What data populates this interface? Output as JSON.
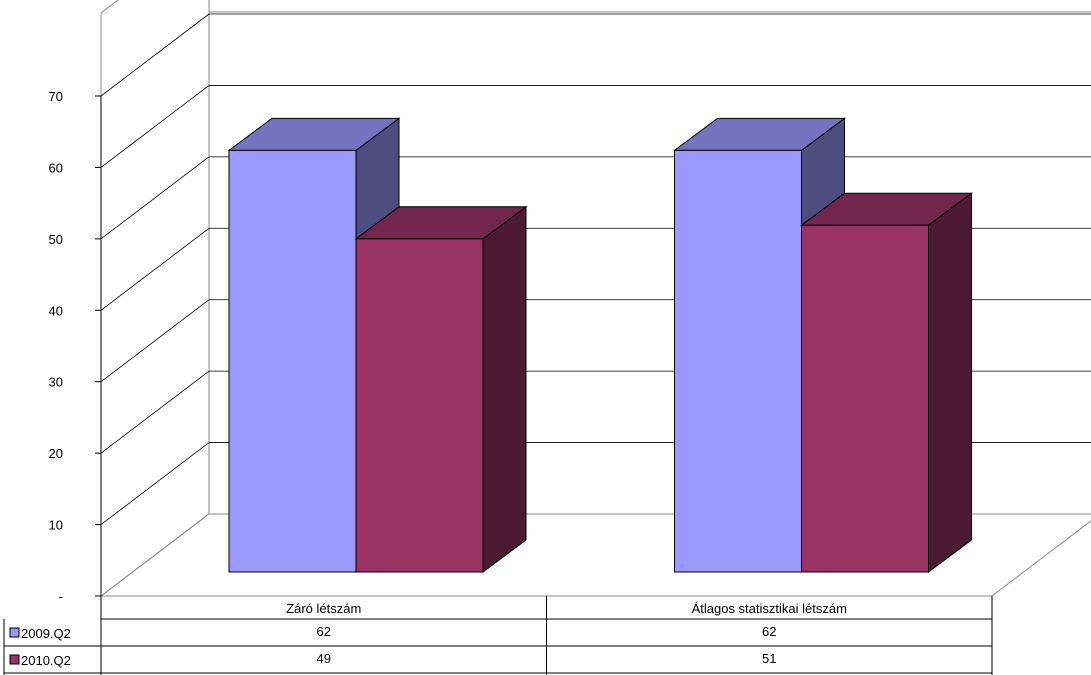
{
  "chart_data": {
    "type": "bar",
    "three_d": true,
    "categories": [
      "Záró létszám",
      "Átlagos statisztikai létszám"
    ],
    "series": [
      {
        "name": "2009.Q2",
        "values": [
          62,
          62
        ],
        "color": "#9999ff"
      },
      {
        "name": "2010.Q2",
        "values": [
          49,
          51
        ],
        "color": "#993366"
      }
    ],
    "y_ticks": [
      "-",
      "10",
      "20",
      "30",
      "40",
      "50",
      "60",
      "70"
    ],
    "ylim": [
      0,
      70
    ],
    "grid": true,
    "legend": "data-table-left",
    "data_table": true
  }
}
